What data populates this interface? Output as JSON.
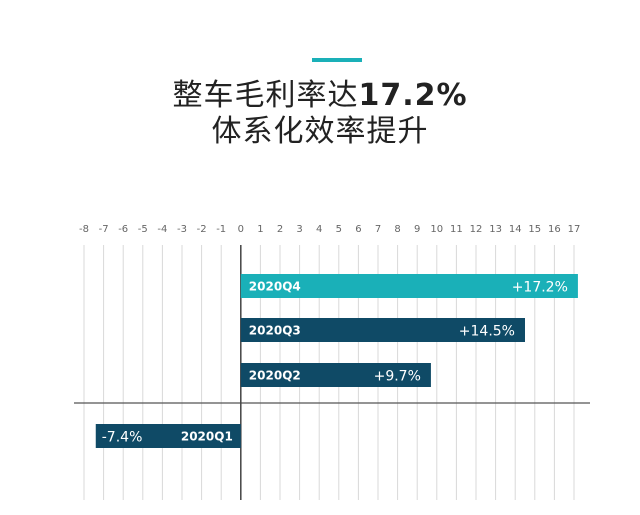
{
  "header": {
    "title_line1_prefix": "整车毛利率达",
    "title_line1_highlight": "17.2%",
    "title_line2": "体系化效率提升"
  },
  "colors": {
    "accent": "#1ab0b8",
    "bar_dark": "#0f4a66",
    "bar_highlight": "#1ab0b8",
    "grid": "#d9d9d9",
    "tick_text": "#666666"
  },
  "chart_data": {
    "type": "bar",
    "orientation": "horizontal",
    "xlim": [
      -8,
      17
    ],
    "ticks": [
      "-8",
      "-7",
      "-6",
      "-5",
      "-4",
      "-3",
      "-2",
      "-1",
      "0",
      "1",
      "2",
      "3",
      "4",
      "5",
      "6",
      "7",
      "8",
      "9",
      "10",
      "11",
      "12",
      "13",
      "14",
      "15",
      "16",
      "17"
    ],
    "categories": [
      "2020Q4",
      "2020Q3",
      "2020Q2",
      "2020Q1"
    ],
    "values": [
      17.2,
      14.5,
      9.7,
      -7.4
    ],
    "value_labels": [
      "+17.2%",
      "+14.5%",
      "+9.7%",
      "-7.4%"
    ],
    "highlight_index": 0,
    "grid": true,
    "unit": "%"
  }
}
